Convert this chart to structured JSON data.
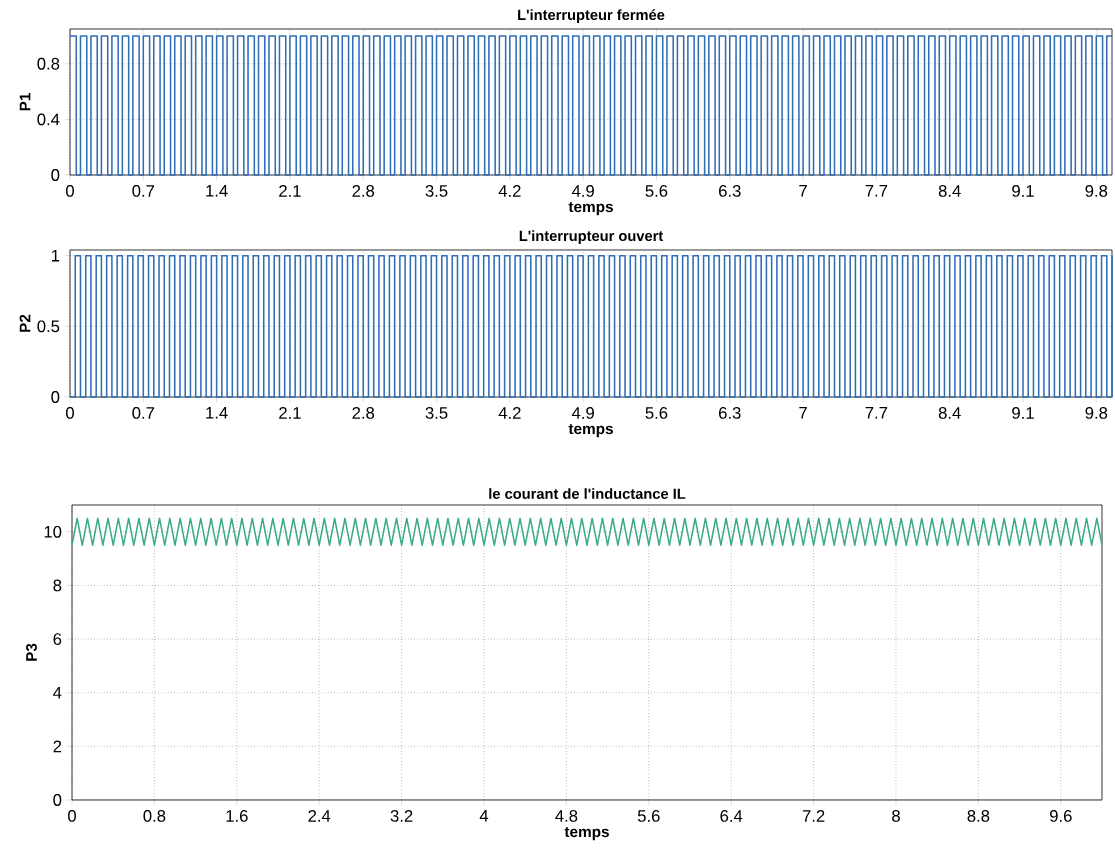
{
  "chart_data": [
    {
      "type": "step",
      "title": "L'interrupteur fermée",
      "xlabel": "temps",
      "ylabel": "P1",
      "color": "#2f6db5",
      "grid": true,
      "xlim": [
        0,
        9.95
      ],
      "ylim": [
        0,
        1.05
      ],
      "xticks": [
        0,
        0.7,
        1.4,
        2.1,
        2.8,
        3.5,
        4.2,
        4.9,
        5.6,
        6.3,
        7,
        7.7,
        8.4,
        9.1,
        9.8
      ],
      "yticks": [
        0,
        0.4,
        0.8
      ],
      "x": [
        0,
        0.06,
        0.1,
        0.16,
        0.2,
        0.26,
        0.3,
        0.36,
        0.4,
        0.46,
        0.5,
        0.56,
        0.6,
        0.66,
        0.7,
        0.76,
        0.8,
        0.86,
        0.9,
        0.96,
        1,
        1.06,
        1.1,
        1.16,
        1.2,
        1.26,
        1.3,
        1.36,
        1.4,
        1.46,
        1.5,
        1.56,
        1.6,
        1.66,
        1.7,
        1.76,
        1.8,
        1.86,
        1.9,
        1.96,
        2,
        2.06,
        2.1,
        2.16,
        2.2,
        2.26,
        2.3,
        2.36,
        2.4,
        2.46,
        2.5,
        2.56,
        2.6,
        2.66,
        2.7,
        2.76,
        2.8,
        2.86,
        2.9,
        2.96,
        3,
        3.06,
        3.1,
        3.16,
        3.2,
        3.26,
        3.3,
        3.36,
        3.4,
        3.46,
        3.5,
        3.56,
        3.6,
        3.66,
        3.7,
        3.76,
        3.8,
        3.86,
        3.9,
        3.96,
        4,
        4.06,
        4.1,
        4.16,
        4.2,
        4.26,
        4.3,
        4.36,
        4.4,
        4.46,
        4.5,
        4.56,
        4.6,
        4.66,
        4.7,
        4.76,
        4.8,
        4.86,
        4.9,
        4.96,
        5,
        5.06,
        5.1,
        5.16,
        5.2,
        5.26,
        5.3,
        5.36,
        5.4,
        5.46,
        5.5,
        5.56,
        5.6,
        5.66,
        5.7,
        5.76,
        5.8,
        5.86,
        5.9,
        5.96,
        6,
        6.06,
        6.1,
        6.16,
        6.2,
        6.26,
        6.3,
        6.36,
        6.4,
        6.46,
        6.5,
        6.56,
        6.6,
        6.66,
        6.7,
        6.76,
        6.8,
        6.86,
        6.9,
        6.96,
        7,
        7.06,
        7.1,
        7.16,
        7.2,
        7.26,
        7.3,
        7.36,
        7.4,
        7.46,
        7.5,
        7.56,
        7.6,
        7.66,
        7.7,
        7.76,
        7.8,
        7.86,
        7.9,
        7.96,
        8,
        8.06,
        8.1,
        8.16,
        8.2,
        8.26,
        8.3,
        8.36,
        8.4,
        8.46,
        8.5,
        8.56,
        8.6,
        8.66,
        8.7,
        8.76,
        8.8,
        8.86,
        8.9,
        8.96,
        9,
        9.06,
        9.1,
        9.16,
        9.2,
        9.26,
        9.3,
        9.36,
        9.4,
        9.46,
        9.5,
        9.56,
        9.6,
        9.66,
        9.7,
        9.76,
        9.8,
        9.86,
        9.9,
        9.95
      ],
      "values": [
        1,
        0,
        1,
        0,
        1,
        0,
        1,
        0,
        1,
        0,
        1,
        0,
        1,
        0,
        1,
        0,
        1,
        0,
        1,
        0,
        1,
        0,
        1,
        0,
        1,
        0,
        1,
        0,
        1,
        0,
        1,
        0,
        1,
        0,
        1,
        0,
        1,
        0,
        1,
        0,
        1,
        0,
        1,
        0,
        1,
        0,
        1,
        0,
        1,
        0,
        1,
        0,
        1,
        0,
        1,
        0,
        1,
        0,
        1,
        0,
        1,
        0,
        1,
        0,
        1,
        0,
        1,
        0,
        1,
        0,
        1,
        0,
        1,
        0,
        1,
        0,
        1,
        0,
        1,
        0,
        1,
        0,
        1,
        0,
        1,
        0,
        1,
        0,
        1,
        0,
        1,
        0,
        1,
        0,
        1,
        0,
        1,
        0,
        1,
        0,
        1,
        0,
        1,
        0,
        1,
        0,
        1,
        0,
        1,
        0,
        1,
        0,
        1,
        0,
        1,
        0,
        1,
        0,
        1,
        0,
        1,
        0,
        1,
        0,
        1,
        0,
        1,
        0,
        1,
        0,
        1,
        0,
        1,
        0,
        1,
        0,
        1,
        0,
        1,
        0,
        1,
        0,
        1,
        0,
        1,
        0,
        1,
        0,
        1,
        0,
        1,
        0,
        1,
        0,
        1,
        0,
        1,
        0,
        1,
        0,
        1,
        0,
        1,
        0,
        1,
        0,
        1,
        0,
        1,
        0,
        1,
        0,
        1,
        0,
        1,
        0,
        1,
        0,
        1,
        0,
        1,
        0,
        1,
        0,
        1,
        0,
        1,
        0,
        1,
        0,
        1,
        0,
        1,
        0,
        1,
        0,
        1,
        0,
        1,
        1
      ]
    },
    {
      "type": "step",
      "title": "L'interrupteur ouvert",
      "xlabel": "temps",
      "ylabel": "P2",
      "color": "#2f6db5",
      "grid": true,
      "xlim": [
        0,
        9.95
      ],
      "ylim": [
        0,
        1.04
      ],
      "xticks": [
        0,
        0.7,
        1.4,
        2.1,
        2.8,
        3.5,
        4.2,
        4.9,
        5.6,
        6.3,
        7,
        7.7,
        8.4,
        9.1,
        9.8
      ],
      "yticks": [
        0,
        0.5,
        1
      ],
      "x": [
        0,
        0.05,
        0.1,
        0.15,
        0.2,
        0.25,
        0.3,
        0.35,
        0.4,
        0.45,
        0.5,
        0.55,
        0.6,
        0.65,
        0.7,
        0.75,
        0.8,
        0.85,
        0.9,
        0.95,
        1,
        1.05,
        1.1,
        1.15,
        1.2,
        1.25,
        1.3,
        1.35,
        1.4,
        1.45,
        1.5,
        1.55,
        1.6,
        1.65,
        1.7,
        1.75,
        1.8,
        1.85,
        1.9,
        1.95,
        2,
        2.05,
        2.1,
        2.15,
        2.2,
        2.25,
        2.3,
        2.35,
        2.4,
        2.45,
        2.5,
        2.55,
        2.6,
        2.65,
        2.7,
        2.75,
        2.8,
        2.85,
        2.9,
        2.95,
        3,
        3.05,
        3.1,
        3.15,
        3.2,
        3.25,
        3.3,
        3.35,
        3.4,
        3.45,
        3.5,
        3.55,
        3.6,
        3.65,
        3.7,
        3.75,
        3.8,
        3.85,
        3.9,
        3.95,
        4,
        4.05,
        4.1,
        4.15,
        4.2,
        4.25,
        4.3,
        4.35,
        4.4,
        4.45,
        4.5,
        4.55,
        4.6,
        4.65,
        4.7,
        4.75,
        4.8,
        4.85,
        4.9,
        4.95,
        5,
        5.05,
        5.1,
        5.15,
        5.2,
        5.25,
        5.3,
        5.35,
        5.4,
        5.45,
        5.5,
        5.55,
        5.6,
        5.65,
        5.7,
        5.75,
        5.8,
        5.85,
        5.9,
        5.95,
        6,
        6.05,
        6.1,
        6.15,
        6.2,
        6.25,
        6.3,
        6.35,
        6.4,
        6.45,
        6.5,
        6.55,
        6.6,
        6.65,
        6.7,
        6.75,
        6.8,
        6.85,
        6.9,
        6.95,
        7,
        7.05,
        7.1,
        7.15,
        7.2,
        7.25,
        7.3,
        7.35,
        7.4,
        7.45,
        7.5,
        7.55,
        7.6,
        7.65,
        7.7,
        7.75,
        7.8,
        7.85,
        7.9,
        7.95,
        8,
        8.05,
        8.1,
        8.15,
        8.2,
        8.25,
        8.3,
        8.35,
        8.4,
        8.45,
        8.5,
        8.55,
        8.6,
        8.65,
        8.7,
        8.75,
        8.8,
        8.85,
        8.9,
        8.95,
        9,
        9.05,
        9.1,
        9.15,
        9.2,
        9.25,
        9.3,
        9.35,
        9.4,
        9.45,
        9.5,
        9.55,
        9.6,
        9.65,
        9.7,
        9.75,
        9.8,
        9.85,
        9.9,
        9.95
      ],
      "values": [
        0,
        1,
        0,
        1,
        0,
        1,
        0,
        1,
        0,
        1,
        0,
        1,
        0,
        1,
        0,
        1,
        0,
        1,
        0,
        1,
        0,
        1,
        0,
        1,
        0,
        1,
        0,
        1,
        0,
        1,
        0,
        1,
        0,
        1,
        0,
        1,
        0,
        1,
        0,
        1,
        0,
        1,
        0,
        1,
        0,
        1,
        0,
        1,
        0,
        1,
        0,
        1,
        0,
        1,
        0,
        1,
        0,
        1,
        0,
        1,
        0,
        1,
        0,
        1,
        0,
        1,
        0,
        1,
        0,
        1,
        0,
        1,
        0,
        1,
        0,
        1,
        0,
        1,
        0,
        1,
        0,
        1,
        0,
        1,
        0,
        1,
        0,
        1,
        0,
        1,
        0,
        1,
        0,
        1,
        0,
        1,
        0,
        1,
        0,
        1,
        0,
        1,
        0,
        1,
        0,
        1,
        0,
        1,
        0,
        1,
        0,
        1,
        0,
        1,
        0,
        1,
        0,
        1,
        0,
        1,
        0,
        1,
        0,
        1,
        0,
        1,
        0,
        1,
        0,
        1,
        0,
        1,
        0,
        1,
        0,
        1,
        0,
        1,
        0,
        1,
        0,
        1,
        0,
        1,
        0,
        1,
        0,
        1,
        0,
        1,
        0,
        1,
        0,
        1,
        0,
        1,
        0,
        1,
        0,
        1,
        0,
        1,
        0,
        1,
        0,
        1,
        0,
        1,
        0,
        1,
        0,
        1,
        0,
        1,
        0,
        1,
        0,
        1,
        0,
        1,
        0,
        1,
        0,
        1,
        0,
        1,
        0,
        1,
        0,
        1,
        0,
        1,
        0,
        1,
        0,
        1,
        0,
        1,
        0,
        1
      ]
    },
    {
      "type": "line",
      "title": "le courant de l'inductance IL",
      "xlabel": "temps",
      "ylabel": "P3",
      "color": "#3aaa88",
      "grid": true,
      "xlim": [
        0,
        10
      ],
      "ylim": [
        0,
        11
      ],
      "xticks": [
        0,
        0.8,
        1.6,
        2.4,
        3.2,
        4,
        4.8,
        5.6,
        6.4,
        7.2,
        8,
        8.8,
        9.6
      ],
      "yticks": [
        0,
        2,
        4,
        6,
        8,
        10
      ],
      "x": [
        0,
        0.05,
        0.1,
        0.15,
        0.2,
        0.25,
        0.3,
        0.35,
        0.4,
        0.45,
        0.5,
        0.55,
        0.6,
        0.65,
        0.7,
        0.75,
        0.8,
        0.85,
        0.9,
        0.95,
        1,
        1.05,
        1.1,
        1.15,
        1.2,
        1.25,
        1.3,
        1.35,
        1.4,
        1.45,
        1.5,
        1.55,
        1.6,
        1.65,
        1.7,
        1.75,
        1.8,
        1.85,
        1.9,
        1.95,
        2,
        2.05,
        2.1,
        2.15,
        2.2,
        2.25,
        2.3,
        2.35,
        2.4,
        2.45,
        2.5,
        2.55,
        2.6,
        2.65,
        2.7,
        2.75,
        2.8,
        2.85,
        2.9,
        2.95,
        3,
        3.05,
        3.1,
        3.15,
        3.2,
        3.25,
        3.3,
        3.35,
        3.4,
        3.45,
        3.5,
        3.55,
        3.6,
        3.65,
        3.7,
        3.75,
        3.8,
        3.85,
        3.9,
        3.95,
        4,
        4.05,
        4.1,
        4.15,
        4.2,
        4.25,
        4.3,
        4.35,
        4.4,
        4.45,
        4.5,
        4.55,
        4.6,
        4.65,
        4.7,
        4.75,
        4.8,
        4.85,
        4.9,
        4.95,
        5,
        5.05,
        5.1,
        5.15,
        5.2,
        5.25,
        5.3,
        5.35,
        5.4,
        5.45,
        5.5,
        5.55,
        5.6,
        5.65,
        5.7,
        5.75,
        5.8,
        5.85,
        5.9,
        5.95,
        6,
        6.05,
        6.1,
        6.15,
        6.2,
        6.25,
        6.3,
        6.35,
        6.4,
        6.45,
        6.5,
        6.55,
        6.6,
        6.65,
        6.7,
        6.75,
        6.8,
        6.85,
        6.9,
        6.95,
        7,
        7.05,
        7.1,
        7.15,
        7.2,
        7.25,
        7.3,
        7.35,
        7.4,
        7.45,
        7.5,
        7.55,
        7.6,
        7.65,
        7.7,
        7.75,
        7.8,
        7.85,
        7.9,
        7.95,
        8,
        8.05,
        8.1,
        8.15,
        8.2,
        8.25,
        8.3,
        8.35,
        8.4,
        8.45,
        8.5,
        8.55,
        8.6,
        8.65,
        8.7,
        8.75,
        8.8,
        8.85,
        8.9,
        8.95,
        9,
        9.05,
        9.1,
        9.15,
        9.2,
        9.25,
        9.3,
        9.35,
        9.4,
        9.45,
        9.5,
        9.55,
        9.6,
        9.65,
        9.7,
        9.75,
        9.8,
        9.85,
        9.9,
        9.95,
        10
      ],
      "values": [
        9.5,
        10.5,
        9.5,
        10.5,
        9.5,
        10.5,
        9.5,
        10.5,
        9.5,
        10.5,
        9.5,
        10.5,
        9.5,
        10.5,
        9.5,
        10.5,
        9.5,
        10.5,
        9.5,
        10.5,
        9.5,
        10.5,
        9.5,
        10.5,
        9.5,
        10.5,
        9.5,
        10.5,
        9.5,
        10.5,
        9.5,
        10.5,
        9.5,
        10.5,
        9.5,
        10.5,
        9.5,
        10.5,
        9.5,
        10.5,
        9.5,
        10.5,
        9.5,
        10.5,
        9.5,
        10.5,
        9.5,
        10.5,
        9.5,
        10.5,
        9.5,
        10.5,
        9.5,
        10.5,
        9.5,
        10.5,
        9.5,
        10.5,
        9.5,
        10.5,
        9.5,
        10.5,
        9.5,
        10.5,
        9.5,
        10.5,
        9.5,
        10.5,
        9.5,
        10.5,
        9.5,
        10.5,
        9.5,
        10.5,
        9.5,
        10.5,
        9.5,
        10.5,
        9.5,
        10.5,
        9.5,
        10.5,
        9.5,
        10.5,
        9.5,
        10.5,
        9.5,
        10.5,
        9.5,
        10.5,
        9.5,
        10.5,
        9.5,
        10.5,
        9.5,
        10.5,
        9.5,
        10.5,
        9.5,
        10.5,
        9.5,
        10.5,
        9.5,
        10.5,
        9.5,
        10.5,
        9.5,
        10.5,
        9.5,
        10.5,
        9.5,
        10.5,
        9.5,
        10.5,
        9.5,
        10.5,
        9.5,
        10.5,
        9.5,
        10.5,
        9.5,
        10.5,
        9.5,
        10.5,
        9.5,
        10.5,
        9.5,
        10.5,
        9.5,
        10.5,
        9.5,
        10.5,
        9.5,
        10.5,
        9.5,
        10.5,
        9.5,
        10.5,
        9.5,
        10.5,
        9.5,
        10.5,
        9.5,
        10.5,
        9.5,
        10.5,
        9.5,
        10.5,
        9.5,
        10.5,
        9.5,
        10.5,
        9.5,
        10.5,
        9.5,
        10.5,
        9.5,
        10.5,
        9.5,
        10.5,
        9.5,
        10.5,
        9.5,
        10.5,
        9.5,
        10.5,
        9.5,
        10.5,
        9.5,
        10.5,
        9.5,
        10.5,
        9.5,
        10.5,
        9.5,
        10.5,
        9.5,
        10.5,
        9.5,
        10.5,
        9.5,
        10.5,
        9.5,
        10.5,
        9.5,
        10.5,
        9.5,
        10.5,
        9.5,
        10.5,
        9.5,
        10.5,
        9.5,
        10.5,
        9.5,
        10.5,
        9.5,
        10.5,
        9.5,
        10.5,
        9.5
      ]
    }
  ]
}
